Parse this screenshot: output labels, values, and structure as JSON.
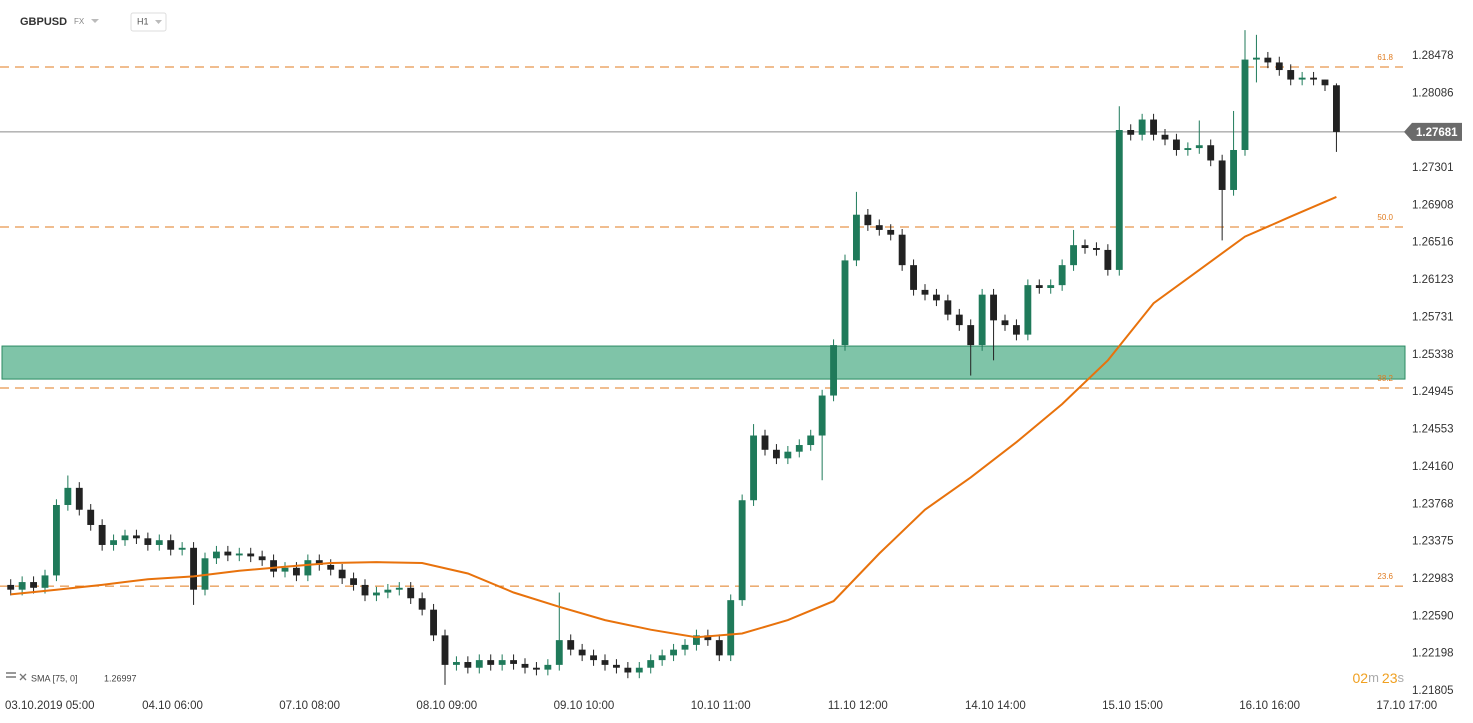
{
  "chart_data": {
    "type": "candlestick",
    "title": "GBPUSD",
    "market": "FX",
    "interval": "H1",
    "xlim": [
      -0.875,
      245.0
    ],
    "ylim": [
      1.21795,
      1.29066
    ],
    "grid": false,
    "xticks": [
      {
        "value": 0,
        "label": "03.10.2019 05:00"
      },
      {
        "value": 24,
        "label": "04.10 06:00"
      },
      {
        "value": 48,
        "label": "07.10 08:00"
      },
      {
        "value": 72,
        "label": "08.10 09:00"
      },
      {
        "value": 96,
        "label": "09.10 10:00"
      },
      {
        "value": 120,
        "label": "10.10 11:00"
      },
      {
        "value": 144,
        "label": "11.10 12:00"
      },
      {
        "value": 168,
        "label": "14.10 14:00"
      },
      {
        "value": 192,
        "label": "15.10 15:00"
      },
      {
        "value": 216,
        "label": "16.10 16:00"
      },
      {
        "value": 240,
        "label": "17.10 17:00"
      }
    ],
    "yticks": [
      1.28478,
      1.28086,
      1.27301,
      1.26908,
      1.26516,
      1.26123,
      1.25731,
      1.25338,
      1.24945,
      1.24553,
      {
        "value": 1.2416,
        "label": "1.24160"
      },
      1.23768,
      1.23375,
      1.22983,
      {
        "value": 1.2259,
        "label": "1.22590"
      },
      1.22198,
      1.21805
    ],
    "series": [
      {
        "up_color": "#1f7a5a",
        "down_color": "#222222",
        "x": [
          1,
          3,
          5,
          7,
          9,
          11,
          13,
          15,
          17,
          19,
          21,
          23,
          25,
          27,
          29,
          31,
          33,
          35,
          37,
          39,
          41,
          43,
          45,
          47,
          49,
          51,
          53,
          55,
          57,
          59,
          61,
          63,
          65,
          67,
          69,
          71,
          73,
          75,
          77,
          79,
          81,
          83,
          85,
          87,
          89,
          91,
          93,
          95,
          97,
          99,
          101,
          103,
          105,
          107,
          109,
          111,
          113,
          115,
          117,
          119,
          121,
          123,
          125,
          127,
          129,
          131,
          133,
          135,
          137,
          139,
          141,
          143,
          145,
          147,
          149,
          151,
          153,
          155,
          157,
          159,
          161,
          163,
          165,
          167,
          169,
          171,
          173,
          175,
          177,
          179,
          181,
          183,
          185,
          187,
          189,
          191,
          193,
          195,
          197,
          199,
          201,
          203,
          205,
          207,
          209,
          211,
          213,
          215,
          217,
          219,
          221,
          223,
          225,
          227,
          229,
          231,
          233
        ],
        "open": [
          1.2292,
          1.2287,
          1.2295,
          1.2289,
          1.2302,
          1.2376,
          1.2394,
          1.2371,
          1.2355,
          1.2334,
          1.2339,
          1.2344,
          1.2341,
          1.2334,
          1.2339,
          1.2329,
          1.2331,
          1.2287,
          1.232,
          1.2327,
          1.2323,
          1.2325,
          1.2322,
          1.2318,
          1.2306,
          1.231,
          1.2302,
          1.2318,
          1.2313,
          1.2308,
          1.2299,
          1.2292,
          1.2281,
          1.2284,
          1.2287,
          1.2289,
          1.2278,
          1.2266,
          1.2239,
          1.2208,
          1.2211,
          1.2205,
          1.2213,
          1.2208,
          1.2213,
          1.2209,
          1.2205,
          1.2203,
          1.2208,
          1.2234,
          1.2224,
          1.2218,
          1.2213,
          1.2208,
          1.2205,
          1.22,
          1.2205,
          1.2213,
          1.2218,
          1.2224,
          1.2229,
          1.2239,
          1.2234,
          1.2218,
          1.2276,
          1.2381,
          1.2449,
          1.2434,
          1.2425,
          1.2432,
          1.2439,
          1.2449,
          1.2491,
          1.2544,
          1.2633,
          1.2681,
          1.267,
          1.2665,
          1.266,
          1.2628,
          1.2602,
          1.2597,
          1.2591,
          1.2576,
          1.2565,
          1.2544,
          1.2597,
          1.257,
          1.2565,
          1.2555,
          1.2607,
          1.2604,
          1.2607,
          1.2628,
          1.2649,
          1.2646,
          1.2644,
          1.2623,
          1.277,
          1.2765,
          1.2781,
          1.2765,
          1.276,
          1.2749,
          1.2751,
          1.2754,
          1.2738,
          1.2707,
          1.2749,
          1.2844,
          1.2846,
          1.2841,
          1.2833,
          1.2823,
          1.2825,
          1.2823,
          1.2817
        ],
        "high": [
          1.2298,
          1.2301,
          1.2301,
          1.2308,
          1.2382,
          1.2407,
          1.24,
          1.2377,
          1.2361,
          1.2345,
          1.235,
          1.235,
          1.2347,
          1.2345,
          1.2345,
          1.2337,
          1.2337,
          1.2326,
          1.2333,
          1.2333,
          1.2331,
          1.2331,
          1.2328,
          1.2324,
          1.2316,
          1.2316,
          1.2324,
          1.2324,
          1.2319,
          1.2314,
          1.2305,
          1.2298,
          1.229,
          1.2293,
          1.2295,
          1.2295,
          1.2284,
          1.2272,
          1.2245,
          1.2217,
          1.2217,
          1.2219,
          1.2219,
          1.2219,
          1.2219,
          1.2215,
          1.2211,
          1.2214,
          1.2284,
          1.224,
          1.223,
          1.2224,
          1.2219,
          1.2214,
          1.2211,
          1.2211,
          1.2219,
          1.2224,
          1.223,
          1.2235,
          1.2245,
          1.2245,
          1.224,
          1.2282,
          1.2387,
          1.2461,
          1.2455,
          1.244,
          1.2438,
          1.2445,
          1.2455,
          1.2497,
          1.255,
          1.2639,
          1.2705,
          1.2687,
          1.2676,
          1.2671,
          1.2666,
          1.2634,
          1.2608,
          1.2603,
          1.2597,
          1.2582,
          1.2571,
          1.2603,
          1.2603,
          1.2576,
          1.2571,
          1.2613,
          1.2613,
          1.2613,
          1.2634,
          1.2665,
          1.2655,
          1.2652,
          1.265,
          1.2795,
          1.2776,
          1.2787,
          1.2787,
          1.2771,
          1.2766,
          1.2757,
          1.278,
          1.276,
          1.2744,
          1.279,
          1.2875,
          1.287,
          1.2852,
          1.2847,
          1.2839,
          1.2831,
          1.2831,
          1.2823,
          1.2819
        ],
        "low": [
          1.2281,
          1.2281,
          1.2283,
          1.2283,
          1.2296,
          1.237,
          1.2365,
          1.2349,
          1.2328,
          1.2328,
          1.2333,
          1.2335,
          1.2328,
          1.2328,
          1.2323,
          1.2323,
          1.2271,
          1.2281,
          1.2314,
          1.2317,
          1.2317,
          1.2316,
          1.2312,
          1.23,
          1.23,
          1.2296,
          1.2296,
          1.2307,
          1.2302,
          1.2293,
          1.2286,
          1.2275,
          1.2275,
          1.2278,
          1.2281,
          1.2272,
          1.226,
          1.2233,
          1.2187,
          1.2202,
          1.2199,
          1.2199,
          1.2202,
          1.2202,
          1.2203,
          1.2199,
          1.2197,
          1.2197,
          1.2202,
          1.2218,
          1.2212,
          1.2207,
          1.2202,
          1.2199,
          1.2194,
          1.2194,
          1.2199,
          1.2207,
          1.2212,
          1.2218,
          1.2223,
          1.2228,
          1.2212,
          1.2212,
          1.227,
          1.2375,
          1.2428,
          1.2419,
          1.2419,
          1.2426,
          1.2433,
          1.2402,
          1.2485,
          1.2538,
          1.2627,
          1.2664,
          1.2659,
          1.2654,
          1.2622,
          1.2596,
          1.2591,
          1.2585,
          1.257,
          1.2559,
          1.2512,
          1.2538,
          1.2528,
          1.2559,
          1.2549,
          1.2549,
          1.2598,
          1.2598,
          1.2601,
          1.2622,
          1.264,
          1.2638,
          1.2617,
          1.2617,
          1.2759,
          1.2759,
          1.2759,
          1.2754,
          1.2743,
          1.2743,
          1.2745,
          1.2732,
          1.2654,
          1.2701,
          1.2743,
          1.282,
          1.2835,
          1.2827,
          1.2817,
          1.2817,
          1.2817,
          1.2811,
          1.2747
        ],
        "close": [
          1.2287,
          1.2295,
          1.2289,
          1.2302,
          1.2376,
          1.2394,
          1.2371,
          1.2355,
          1.2334,
          1.2339,
          1.2344,
          1.2341,
          1.2334,
          1.2339,
          1.2329,
          1.2331,
          1.2287,
          1.232,
          1.2327,
          1.2323,
          1.2325,
          1.2322,
          1.2318,
          1.2306,
          1.231,
          1.2302,
          1.2318,
          1.2313,
          1.2308,
          1.2299,
          1.2292,
          1.2281,
          1.2284,
          1.2287,
          1.2289,
          1.2278,
          1.2266,
          1.2239,
          1.2208,
          1.2211,
          1.2205,
          1.2213,
          1.2208,
          1.2213,
          1.2209,
          1.2205,
          1.2203,
          1.2208,
          1.2234,
          1.2224,
          1.2218,
          1.2213,
          1.2208,
          1.2205,
          1.22,
          1.2205,
          1.2213,
          1.2218,
          1.2224,
          1.2229,
          1.2239,
          1.2234,
          1.2218,
          1.2276,
          1.2381,
          1.2449,
          1.2434,
          1.2425,
          1.2432,
          1.2439,
          1.2449,
          1.2491,
          1.2544,
          1.2633,
          1.2681,
          1.267,
          1.2665,
          1.266,
          1.2628,
          1.2602,
          1.2597,
          1.2591,
          1.2576,
          1.2565,
          1.2544,
          1.2597,
          1.257,
          1.2565,
          1.2555,
          1.2607,
          1.2604,
          1.2607,
          1.2628,
          1.2649,
          1.2646,
          1.2644,
          1.2623,
          1.277,
          1.2765,
          1.2781,
          1.2765,
          1.276,
          1.2749,
          1.2751,
          1.2754,
          1.2738,
          1.2707,
          1.2749,
          1.2844,
          1.2846,
          1.2841,
          1.2833,
          1.2823,
          1.2825,
          1.2823,
          1.2817,
          1.2768
        ]
      }
    ],
    "sma": {
      "label": "SMA [75, 0]",
      "color": "#e8720c",
      "x": [
        1,
        9,
        17,
        25,
        33,
        41,
        49,
        57,
        65,
        73,
        81,
        89,
        97,
        105,
        113,
        121,
        129,
        137,
        145,
        153,
        161,
        169,
        177,
        185,
        193,
        201,
        209,
        217,
        225,
        233
      ],
      "values": [
        1.2282,
        1.2287,
        1.2292,
        1.2298,
        1.2301,
        1.2307,
        1.2311,
        1.2315,
        1.2316,
        1.2315,
        1.2304,
        1.2284,
        1.2269,
        1.2255,
        1.2245,
        1.2237,
        1.2241,
        1.2255,
        1.2275,
        1.2325,
        1.2371,
        1.2405,
        1.2442,
        1.2482,
        1.2528,
        1.2588,
        1.2623,
        1.2658,
        1.2679,
        1.26997
      ]
    },
    "levels": [
      {
        "label": "61.8",
        "value": 1.28362
      },
      {
        "label": "50.0",
        "value": 1.26681
      },
      {
        "label": "38.2",
        "value": 1.24989
      },
      {
        "label": "23.6",
        "value": 1.22908
      }
    ],
    "level_color": "#e07b1f",
    "zones": [
      {
        "from": 1.25083,
        "to": 1.2543,
        "color": "#7fc4a8"
      }
    ],
    "last_price": 1.27681,
    "countdown": {
      "minutes": "02",
      "minutes_unit": "m",
      "seconds": "23",
      "seconds_unit": "s"
    }
  }
}
